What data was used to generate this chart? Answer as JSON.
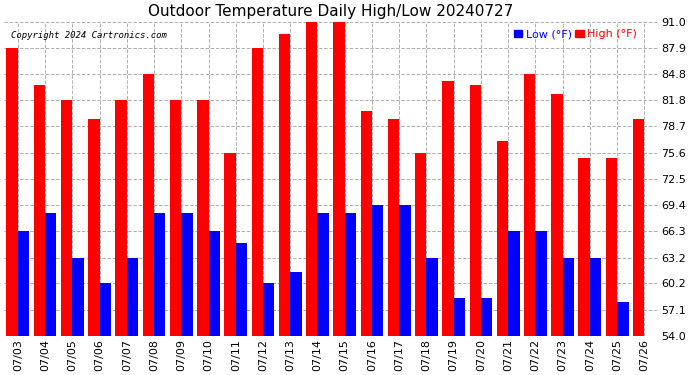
{
  "title": "Outdoor Temperature Daily High/Low 20240727",
  "copyright": "Copyright 2024 Cartronics.com",
  "legend_low_label": "Low",
  "legend_high_label": "High",
  "legend_unit": "(°F)",
  "ylabel_right_ticks": [
    54.0,
    57.1,
    60.2,
    63.2,
    66.3,
    69.4,
    72.5,
    75.6,
    78.7,
    81.8,
    84.8,
    87.9,
    91.0
  ],
  "ylim": [
    54.0,
    91.0
  ],
  "dates": [
    "07/03",
    "07/04",
    "07/05",
    "07/06",
    "07/07",
    "07/08",
    "07/09",
    "07/10",
    "07/11",
    "07/12",
    "07/13",
    "07/14",
    "07/15",
    "07/16",
    "07/17",
    "07/18",
    "07/19",
    "07/20",
    "07/21",
    "07/22",
    "07/23",
    "07/24",
    "07/25",
    "07/26"
  ],
  "highs": [
    87.9,
    83.5,
    81.8,
    79.5,
    81.8,
    84.8,
    81.8,
    81.8,
    75.6,
    87.9,
    89.5,
    91.0,
    91.0,
    80.5,
    79.5,
    75.6,
    84.0,
    83.5,
    77.0,
    84.8,
    82.5,
    75.0,
    75.0,
    79.5
  ],
  "lows": [
    66.3,
    68.5,
    63.2,
    60.2,
    63.2,
    68.5,
    68.5,
    66.3,
    65.0,
    60.2,
    61.5,
    68.5,
    68.5,
    69.4,
    69.4,
    63.2,
    58.5,
    58.5,
    66.3,
    66.3,
    63.2,
    63.2,
    58.0,
    54.0
  ],
  "bar_color_high": "#ff0000",
  "bar_color_low": "#0000ff",
  "background_color": "#ffffff",
  "grid_color": "#b0b0b0",
  "title_fontsize": 11,
  "tick_fontsize": 8,
  "bar_width": 0.42,
  "figwidth": 6.9,
  "figheight": 3.75,
  "dpi": 100
}
